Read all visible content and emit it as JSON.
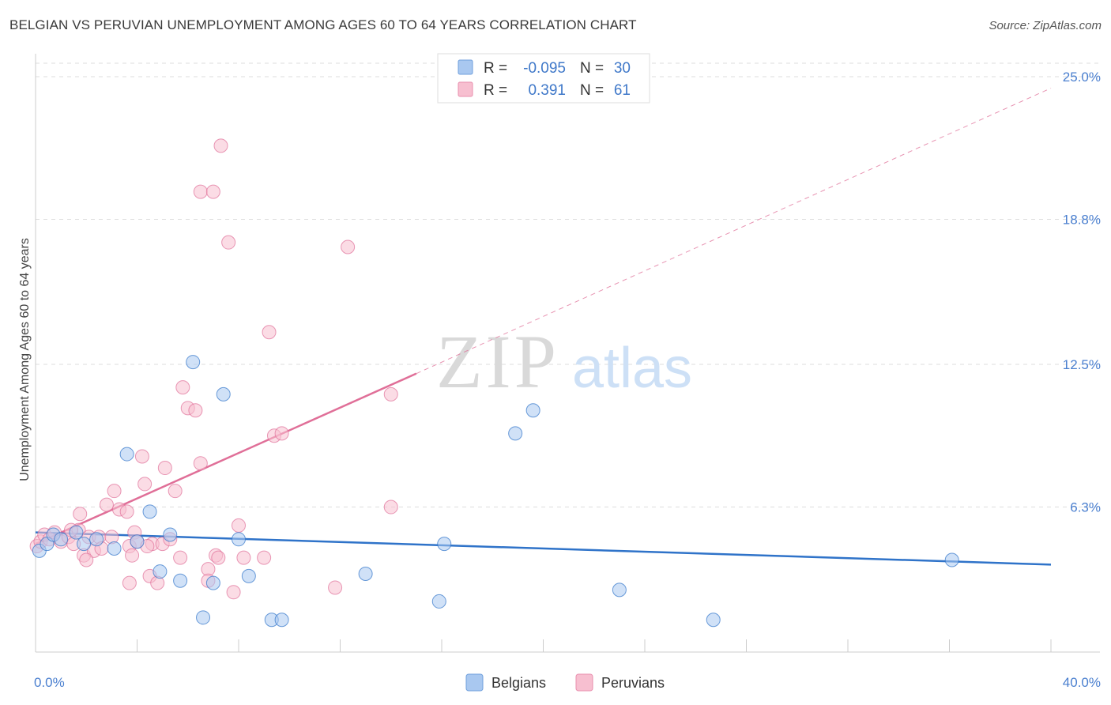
{
  "header": {
    "title": "BELGIAN VS PERUVIAN UNEMPLOYMENT AMONG AGES 60 TO 64 YEARS CORRELATION CHART",
    "source": "Source: ZipAtlas.com"
  },
  "watermark": {
    "zip": "ZIP",
    "atlas": "atlas"
  },
  "colors": {
    "belgian_fill": "#a9c8f0",
    "belgian_line": "#2f73c9",
    "peruvian_fill": "#f7bfd0",
    "peruvian_line": "#e06f98",
    "tick_label": "#4a7fcf",
    "grid": "#dddddd"
  },
  "legend_top": {
    "rows": [
      {
        "r_label": "R =",
        "r_value": "-0.095",
        "n_label": "N =",
        "n_value": "30"
      },
      {
        "r_label": "R =",
        "r_value": "0.391",
        "n_label": "N =",
        "n_value": "61"
      }
    ]
  },
  "chart_data": {
    "type": "scatter",
    "title": "BELGIAN VS PERUVIAN UNEMPLOYMENT AMONG AGES 60 TO 64 YEARS CORRELATION CHART",
    "xlabel": "",
    "ylabel": "Unemployment Among Ages 60 to 64 years",
    "xlim": [
      0,
      40
    ],
    "ylim": [
      0,
      25
    ],
    "x_tick_labels": [
      "0.0%",
      "40.0%"
    ],
    "y_ticks": [
      6.3,
      12.5,
      18.8,
      25.0
    ],
    "y_tick_labels": [
      "6.3%",
      "12.5%",
      "18.8%",
      "25.0%"
    ],
    "grid": true,
    "legend_position": "bottom-center",
    "series": [
      {
        "name": "Belgians",
        "color": "#a9c8f0",
        "stroke": "#2f73c9",
        "r": -0.095,
        "n": 30,
        "trend": {
          "x": [
            0,
            40
          ],
          "y": [
            5.2,
            3.8
          ]
        },
        "points": [
          [
            0.15,
            4.4
          ],
          [
            0.45,
            4.7
          ],
          [
            0.7,
            5.1
          ],
          [
            1.0,
            4.9
          ],
          [
            1.6,
            5.2
          ],
          [
            1.9,
            4.7
          ],
          [
            2.4,
            4.9
          ],
          [
            3.1,
            4.5
          ],
          [
            3.6,
            8.6
          ],
          [
            4.0,
            4.8
          ],
          [
            4.5,
            6.1
          ],
          [
            4.9,
            3.5
          ],
          [
            5.3,
            5.1
          ],
          [
            5.7,
            3.1
          ],
          [
            6.6,
            1.5
          ],
          [
            7.0,
            3.0
          ],
          [
            7.4,
            11.2
          ],
          [
            8.4,
            3.3
          ],
          [
            8.0,
            4.9
          ],
          [
            9.3,
            1.4
          ],
          [
            9.7,
            1.4
          ],
          [
            13.0,
            3.4
          ],
          [
            15.9,
            2.2
          ],
          [
            16.1,
            4.7
          ],
          [
            18.9,
            9.5
          ],
          [
            19.6,
            10.5
          ],
          [
            23.0,
            2.7
          ],
          [
            26.7,
            1.4
          ],
          [
            36.1,
            4.0
          ],
          [
            6.2,
            12.6
          ]
        ]
      },
      {
        "name": "Peruvians",
        "color": "#f7bfd0",
        "stroke": "#e06f98",
        "r": 0.391,
        "n": 61,
        "trend": {
          "x": [
            0,
            15
          ],
          "y": [
            4.7,
            12.1
          ]
        },
        "trend_extension": {
          "x": [
            15,
            40
          ],
          "y": [
            12.1,
            24.5
          ]
        },
        "points": [
          [
            0.05,
            4.6
          ],
          [
            0.2,
            4.8
          ],
          [
            0.35,
            5.1
          ],
          [
            0.55,
            4.9
          ],
          [
            0.75,
            5.2
          ],
          [
            1.0,
            4.8
          ],
          [
            1.3,
            5.0
          ],
          [
            1.5,
            4.7
          ],
          [
            1.7,
            5.3
          ],
          [
            1.75,
            6.0
          ],
          [
            1.9,
            4.2
          ],
          [
            2.1,
            5.0
          ],
          [
            2.3,
            4.4
          ],
          [
            2.5,
            5.0
          ],
          [
            2.6,
            4.5
          ],
          [
            2.8,
            6.4
          ],
          [
            3.0,
            5.0
          ],
          [
            3.1,
            7.0
          ],
          [
            3.3,
            6.2
          ],
          [
            3.6,
            6.1
          ],
          [
            3.7,
            4.6
          ],
          [
            3.7,
            3.0
          ],
          [
            3.8,
            4.2
          ],
          [
            3.9,
            5.2
          ],
          [
            4.0,
            4.8
          ],
          [
            4.2,
            8.5
          ],
          [
            4.3,
            7.3
          ],
          [
            4.5,
            3.3
          ],
          [
            4.6,
            4.7
          ],
          [
            4.8,
            3.0
          ],
          [
            5.0,
            4.7
          ],
          [
            5.1,
            8.0
          ],
          [
            5.3,
            4.9
          ],
          [
            5.5,
            7.0
          ],
          [
            5.7,
            4.1
          ],
          [
            5.8,
            11.5
          ],
          [
            6.0,
            10.6
          ],
          [
            6.3,
            10.5
          ],
          [
            6.5,
            8.2
          ],
          [
            6.5,
            20.0
          ],
          [
            6.8,
            3.6
          ],
          [
            6.8,
            3.1
          ],
          [
            7.0,
            20.0
          ],
          [
            7.1,
            4.2
          ],
          [
            7.2,
            4.1
          ],
          [
            7.3,
            22.0
          ],
          [
            7.6,
            17.8
          ],
          [
            7.8,
            2.6
          ],
          [
            8.0,
            5.5
          ],
          [
            8.2,
            4.1
          ],
          [
            9.0,
            4.1
          ],
          [
            9.2,
            13.9
          ],
          [
            9.4,
            9.4
          ],
          [
            9.7,
            9.5
          ],
          [
            11.8,
            2.8
          ],
          [
            12.3,
            17.6
          ],
          [
            14.0,
            11.2
          ],
          [
            14.0,
            6.3
          ],
          [
            1.4,
            5.3
          ],
          [
            2.0,
            4.0
          ],
          [
            4.4,
            4.6
          ]
        ]
      }
    ]
  },
  "legend_bottom": {
    "items": [
      {
        "label": "Belgians"
      },
      {
        "label": "Peruvians"
      }
    ]
  }
}
